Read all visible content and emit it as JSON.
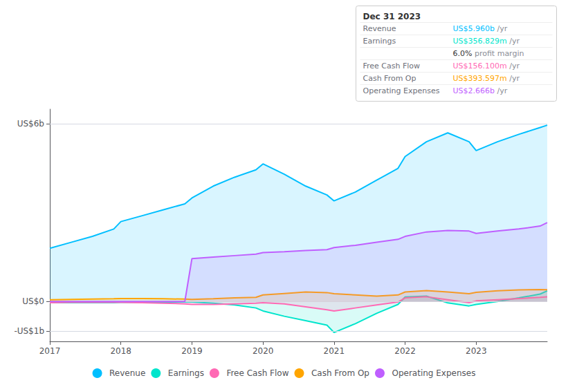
{
  "chart_data": {
    "type": "area",
    "x": [
      2017,
      2017.3,
      2017.6,
      2017.9,
      2018,
      2018.3,
      2018.6,
      2018.9,
      2019,
      2019.3,
      2019.6,
      2019.9,
      2020,
      2020.3,
      2020.6,
      2020.9,
      2021,
      2021.3,
      2021.6,
      2021.9,
      2022,
      2022.3,
      2022.6,
      2022.9,
      2023,
      2023.3,
      2023.6,
      2023.9,
      2024.0
    ],
    "xlim": [
      2017,
      2024.0
    ],
    "xticks": [
      2017,
      2018,
      2019,
      2020,
      2021,
      2022,
      2023
    ],
    "ylim": [
      -1.35,
      6.5
    ],
    "yticks": [
      {
        "value": -1.0,
        "label": "-US$1b"
      },
      {
        "value": 0.0,
        "label": "US$0"
      },
      {
        "value": 6.0,
        "label": "US$6b"
      }
    ],
    "grid": true,
    "legend": "bottom",
    "series": [
      {
        "name": "Revenue",
        "color": "#00bfff",
        "values": [
          1.8,
          2.0,
          2.2,
          2.45,
          2.7,
          2.9,
          3.1,
          3.3,
          3.5,
          3.9,
          4.2,
          4.45,
          4.65,
          4.3,
          3.9,
          3.6,
          3.4,
          3.7,
          4.1,
          4.5,
          4.9,
          5.4,
          5.7,
          5.4,
          5.1,
          5.4,
          5.65,
          5.88,
          5.96
        ]
      },
      {
        "name": "Earnings",
        "color": "#00e5cc",
        "values": [
          -0.04,
          -0.04,
          -0.04,
          -0.04,
          -0.03,
          -0.03,
          -0.02,
          -0.02,
          -0.02,
          -0.06,
          -0.12,
          -0.22,
          -0.32,
          -0.5,
          -0.65,
          -0.8,
          -1.05,
          -0.75,
          -0.4,
          -0.1,
          0.15,
          0.18,
          -0.05,
          -0.15,
          -0.1,
          0.0,
          0.12,
          0.25,
          0.357
        ]
      },
      {
        "name": "Free Cash Flow",
        "color": "#ff69b4",
        "values": [
          -0.04,
          -0.03,
          -0.03,
          -0.03,
          -0.03,
          -0.04,
          -0.06,
          -0.08,
          -0.1,
          -0.1,
          -0.08,
          -0.06,
          -0.04,
          -0.08,
          -0.18,
          -0.28,
          -0.32,
          -0.22,
          -0.12,
          -0.02,
          0.12,
          0.16,
          0.06,
          -0.04,
          0.02,
          0.06,
          0.1,
          0.14,
          0.156
        ]
      },
      {
        "name": "Cash From Op",
        "color": "#ffa500",
        "values": [
          0.06,
          0.07,
          0.08,
          0.09,
          0.1,
          0.1,
          0.09,
          0.08,
          0.07,
          0.09,
          0.12,
          0.14,
          0.22,
          0.27,
          0.32,
          0.3,
          0.26,
          0.22,
          0.18,
          0.22,
          0.32,
          0.37,
          0.32,
          0.26,
          0.31,
          0.36,
          0.39,
          0.4,
          0.394
        ]
      },
      {
        "name": "Operating Expenses",
        "color": "#bf5fff",
        "values": [
          0.0,
          0.0,
          0.0,
          0.0,
          0.0,
          0.0,
          0.0,
          0.0,
          1.45,
          1.5,
          1.55,
          1.6,
          1.65,
          1.68,
          1.72,
          1.75,
          1.82,
          1.9,
          2.0,
          2.1,
          2.2,
          2.35,
          2.4,
          2.38,
          2.3,
          2.38,
          2.45,
          2.55,
          2.666
        ]
      }
    ],
    "annotations": [
      {
        "title": "Dec 31 2023",
        "rows": [
          {
            "label": "Revenue",
            "value": "US$5.960b",
            "suffix": " /yr",
            "color": "#00bfff"
          },
          {
            "label": "Earnings",
            "value": "US$356.829m",
            "suffix": " /yr",
            "color": "#00e5cc"
          },
          {
            "value": "6.0%",
            "suffix": " profit margin"
          },
          {
            "label": "Free Cash Flow",
            "value": "US$156.100m",
            "suffix": " /yr",
            "color": "#ff69b4"
          },
          {
            "label": "Cash From Op",
            "value": "US$393.597m",
            "suffix": " /yr",
            "color": "#ffa500"
          },
          {
            "label": "Operating Expenses",
            "value": "US$2.666b",
            "suffix": " /yr",
            "color": "#bf5fff"
          }
        ]
      }
    ]
  }
}
